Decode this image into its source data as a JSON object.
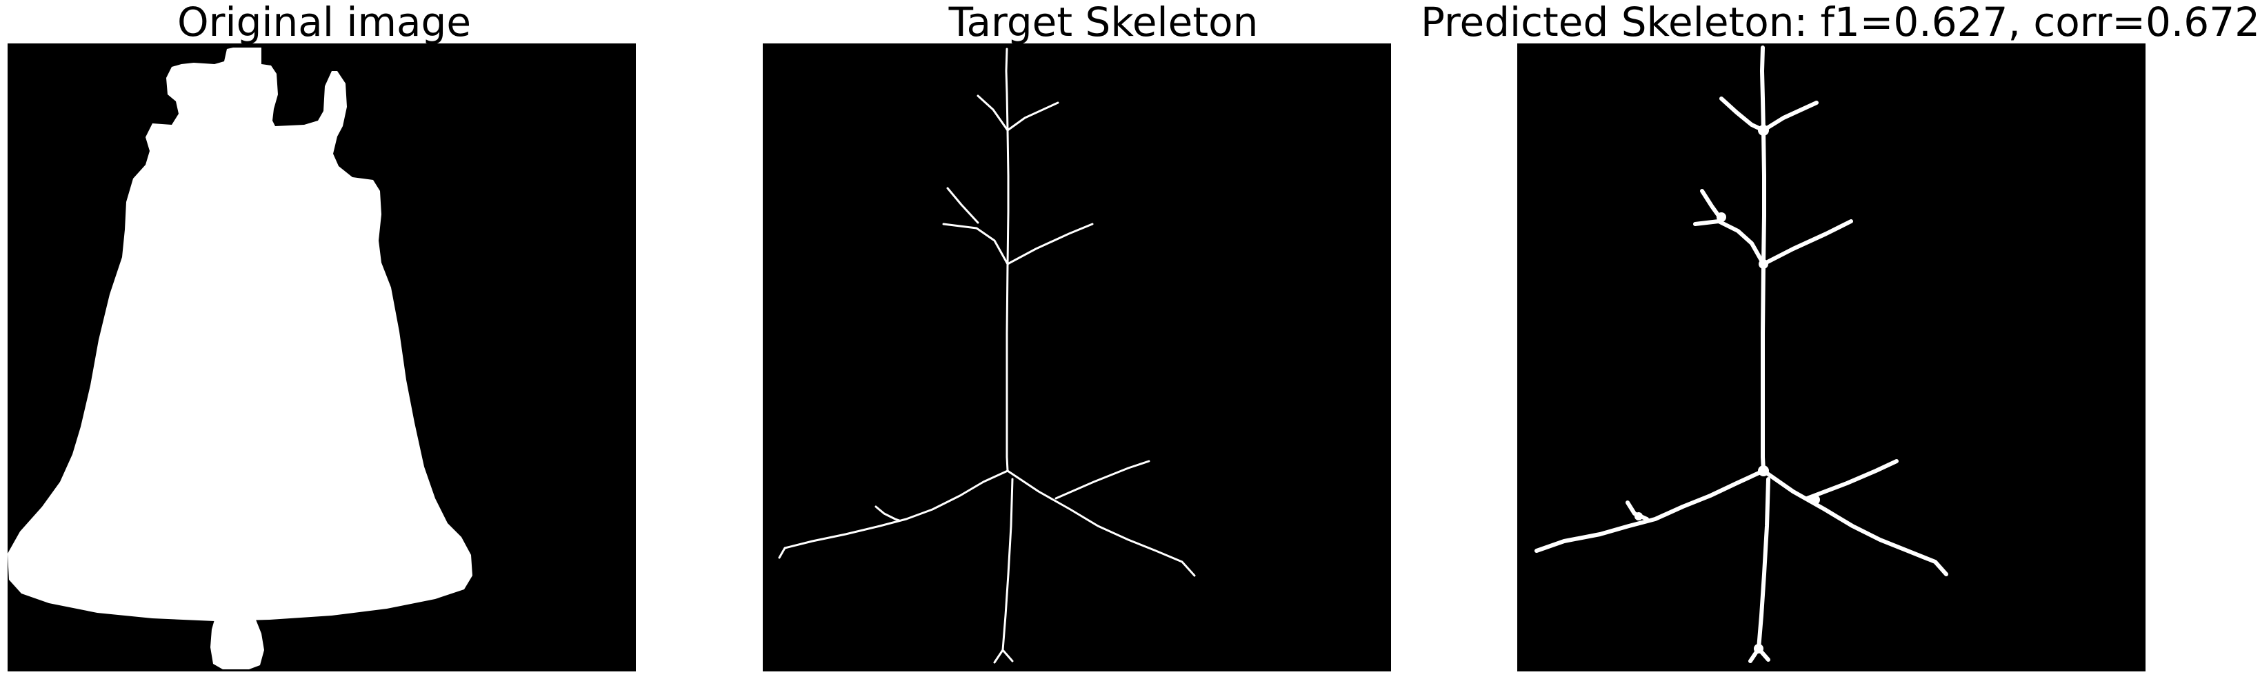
{
  "panels": [
    {
      "title": "Original image"
    },
    {
      "title": "Target Skeleton"
    },
    {
      "title": "Predicted Skeleton: f1=0.627, corr=0.672"
    }
  ],
  "colors": {
    "background": "#000000",
    "foreground": "#ffffff",
    "page": "#ffffff"
  }
}
